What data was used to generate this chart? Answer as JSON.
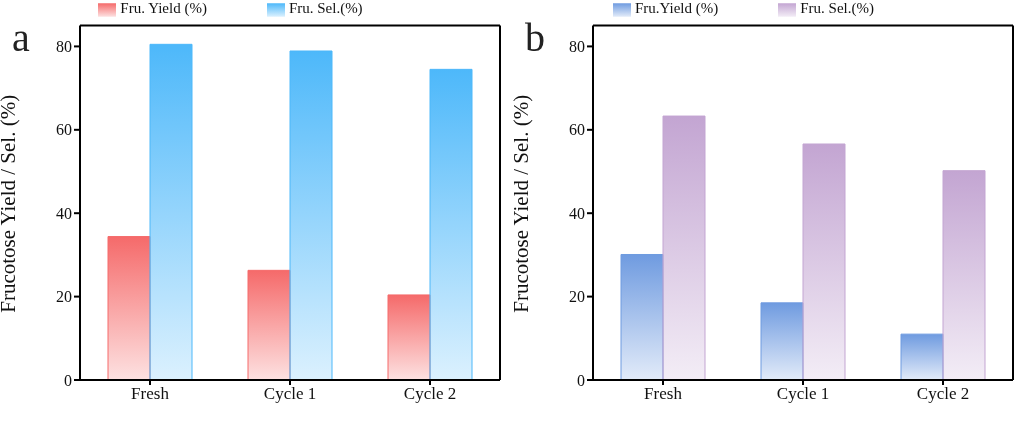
{
  "chart_data": [
    {
      "type": "bar",
      "annotations": [
        "a"
      ],
      "ylabel": "Frucotose Yield / Sel. (%)",
      "categories": [
        "Fresh",
        "Cycle 1",
        "Cycle 2"
      ],
      "ylim": [
        0,
        85
      ],
      "yticks": [
        0,
        20,
        40,
        60,
        80
      ],
      "legend": "top",
      "series": [
        {
          "name": "Fru. Yield (%)",
          "color": "#f56a6a",
          "values": [
            34.4,
            26.3,
            20.4
          ]
        },
        {
          "name": "Fru. Sel.(%)",
          "color": "#4db8fa",
          "values": [
            80.5,
            78.9,
            74.5
          ]
        }
      ]
    },
    {
      "type": "bar",
      "annotations": [
        "b"
      ],
      "ylabel": "Frucotose Yield / Sel. (%)",
      "categories": [
        "Fresh",
        "Cycle 1",
        "Cycle 2"
      ],
      "ylim": [
        0,
        85
      ],
      "yticks": [
        0,
        20,
        40,
        60,
        80
      ],
      "legend": "top",
      "series": [
        {
          "name": "Fru.Yield (%)",
          "color": "#6f9be0",
          "values": [
            30.1,
            18.5,
            11.0
          ]
        },
        {
          "name": "Fru. Sel.(%)",
          "color": "#c3a5d2",
          "values": [
            63.3,
            56.6,
            50.2
          ]
        }
      ]
    }
  ]
}
